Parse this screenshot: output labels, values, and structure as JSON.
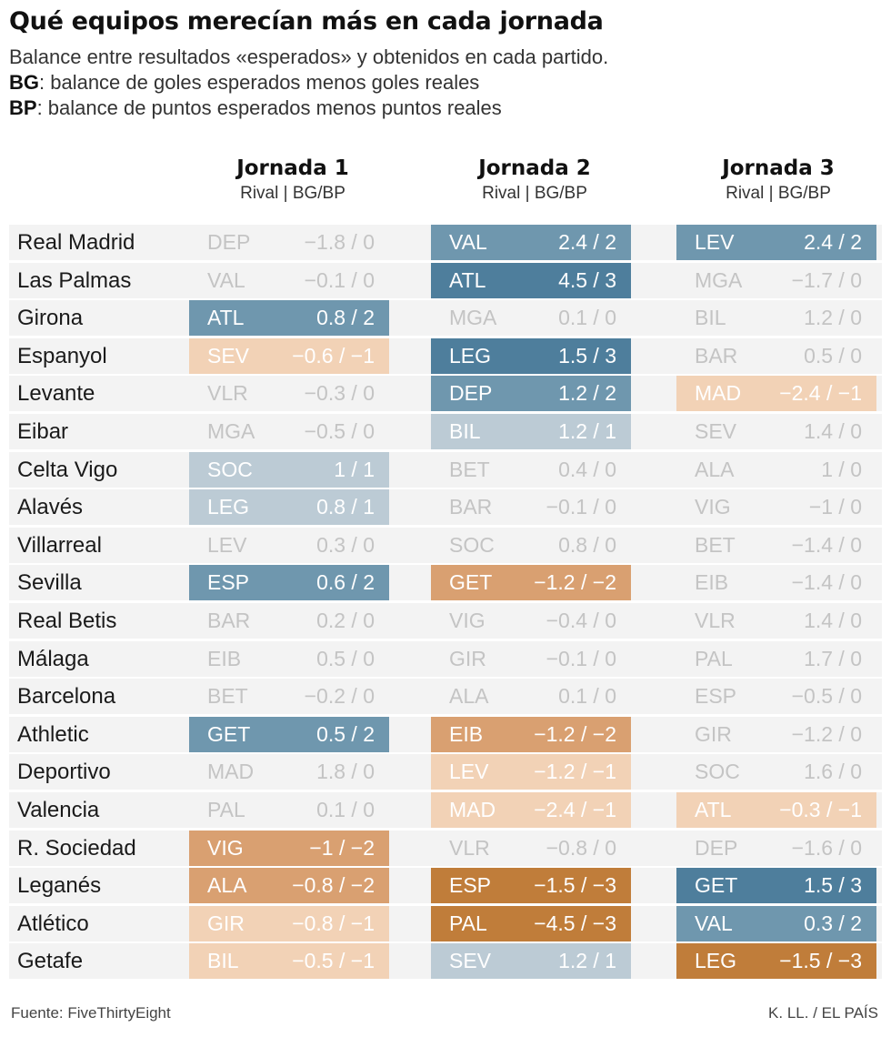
{
  "title": "Qué equipos merecían más en cada jornada",
  "subtitle": "Balance entre resultados «esperados» y obtenidos en cada partido.",
  "legend": {
    "bg_key": "BG",
    "bg_text": ": balance de goles esperados menos goles reales",
    "bp_key": "BP",
    "bp_text": ": balance de puntos esperados menos puntos reales"
  },
  "columns": [
    {
      "title": "Jornada 1",
      "subtitle": "Rival | BG/BP"
    },
    {
      "title": "Jornada 2",
      "subtitle": "Rival | BG/BP"
    },
    {
      "title": "Jornada 3",
      "subtitle": "Rival | BG/BP"
    }
  ],
  "footer": {
    "source": "Fuente: FiveThirtyEight",
    "credit": "K. LL. / EL PAÍS"
  },
  "colors": {
    "neutral": "#f3f3f3",
    "neutral_text": "#c4c4c4",
    "pos1": "#bccbd5",
    "pos2": "#6f97ae",
    "pos3": "#4e7e9c",
    "neg1": "#f2d2b6",
    "neg2": "#d9a071",
    "neg3": "#c07d3a"
  },
  "chart_data": {
    "type": "table",
    "rows": [
      {
        "team": "Real Madrid",
        "cells": [
          {
            "rival": "DEP",
            "bg": -1.8,
            "bp": 0,
            "label": "−1.8 / 0"
          },
          {
            "rival": "VAL",
            "bg": 2.4,
            "bp": 2,
            "label": "2.4 / 2"
          },
          {
            "rival": "LEV",
            "bg": 2.4,
            "bp": 2,
            "label": "2.4 / 2"
          }
        ]
      },
      {
        "team": "Las Palmas",
        "cells": [
          {
            "rival": "VAL",
            "bg": -0.1,
            "bp": 0,
            "label": "−0.1 / 0"
          },
          {
            "rival": "ATL",
            "bg": 4.5,
            "bp": 3,
            "label": "4.5 / 3"
          },
          {
            "rival": "MGA",
            "bg": -1.7,
            "bp": 0,
            "label": "−1.7 / 0"
          }
        ]
      },
      {
        "team": "Girona",
        "cells": [
          {
            "rival": "ATL",
            "bg": 0.8,
            "bp": 2,
            "label": "0.8 / 2"
          },
          {
            "rival": "MGA",
            "bg": 0.1,
            "bp": 0,
            "label": "0.1 / 0"
          },
          {
            "rival": "BIL",
            "bg": 1.2,
            "bp": 0,
            "label": "1.2 / 0"
          }
        ]
      },
      {
        "team": "Espanyol",
        "cells": [
          {
            "rival": "SEV",
            "bg": -0.6,
            "bp": -1,
            "label": "−0.6 / −1"
          },
          {
            "rival": "LEG",
            "bg": 1.5,
            "bp": 3,
            "label": "1.5 / 3"
          },
          {
            "rival": "BAR",
            "bg": 0.5,
            "bp": 0,
            "label": "0.5 / 0"
          }
        ]
      },
      {
        "team": "Levante",
        "cells": [
          {
            "rival": "VLR",
            "bg": -0.3,
            "bp": 0,
            "label": "−0.3 / 0"
          },
          {
            "rival": "DEP",
            "bg": 1.2,
            "bp": 2,
            "label": "1.2 / 2"
          },
          {
            "rival": "MAD",
            "bg": -2.4,
            "bp": -1,
            "label": "−2.4 / −1"
          }
        ]
      },
      {
        "team": "Eibar",
        "cells": [
          {
            "rival": "MGA",
            "bg": -0.5,
            "bp": 0,
            "label": "−0.5 / 0"
          },
          {
            "rival": "BIL",
            "bg": 1.2,
            "bp": 1,
            "label": "1.2 / 1"
          },
          {
            "rival": "SEV",
            "bg": 1.4,
            "bp": 0,
            "label": "1.4 / 0"
          }
        ]
      },
      {
        "team": "Celta Vigo",
        "cells": [
          {
            "rival": "SOC",
            "bg": 1,
            "bp": 1,
            "label": "1 / 1"
          },
          {
            "rival": "BET",
            "bg": 0.4,
            "bp": 0,
            "label": "0.4 / 0"
          },
          {
            "rival": "ALA",
            "bg": 1,
            "bp": 0,
            "label": "1 / 0"
          }
        ]
      },
      {
        "team": "Alavés",
        "cells": [
          {
            "rival": "LEG",
            "bg": 0.8,
            "bp": 1,
            "label": "0.8 / 1"
          },
          {
            "rival": "BAR",
            "bg": -0.1,
            "bp": 0,
            "label": "−0.1 / 0"
          },
          {
            "rival": "VIG",
            "bg": -1,
            "bp": 0,
            "label": "−1 / 0"
          }
        ]
      },
      {
        "team": "Villarreal",
        "cells": [
          {
            "rival": "LEV",
            "bg": 0.3,
            "bp": 0,
            "label": "0.3 / 0"
          },
          {
            "rival": "SOC",
            "bg": 0.8,
            "bp": 0,
            "label": "0.8 / 0"
          },
          {
            "rival": "BET",
            "bg": -1.4,
            "bp": 0,
            "label": "−1.4 / 0"
          }
        ]
      },
      {
        "team": "Sevilla",
        "cells": [
          {
            "rival": "ESP",
            "bg": 0.6,
            "bp": 2,
            "label": "0.6 / 2"
          },
          {
            "rival": "GET",
            "bg": -1.2,
            "bp": -2,
            "label": "−1.2 / −2"
          },
          {
            "rival": "EIB",
            "bg": -1.4,
            "bp": 0,
            "label": "−1.4 / 0"
          }
        ]
      },
      {
        "team": "Real Betis",
        "cells": [
          {
            "rival": "BAR",
            "bg": 0.2,
            "bp": 0,
            "label": "0.2 / 0"
          },
          {
            "rival": "VIG",
            "bg": -0.4,
            "bp": 0,
            "label": "−0.4 / 0"
          },
          {
            "rival": "VLR",
            "bg": 1.4,
            "bp": 0,
            "label": "1.4 / 0"
          }
        ]
      },
      {
        "team": "Málaga",
        "cells": [
          {
            "rival": "EIB",
            "bg": 0.5,
            "bp": 0,
            "label": "0.5 / 0"
          },
          {
            "rival": "GIR",
            "bg": -0.1,
            "bp": 0,
            "label": "−0.1 / 0"
          },
          {
            "rival": "PAL",
            "bg": 1.7,
            "bp": 0,
            "label": "1.7 / 0"
          }
        ]
      },
      {
        "team": "Barcelona",
        "cells": [
          {
            "rival": "BET",
            "bg": -0.2,
            "bp": 0,
            "label": "−0.2 / 0"
          },
          {
            "rival": "ALA",
            "bg": 0.1,
            "bp": 0,
            "label": "0.1 / 0"
          },
          {
            "rival": "ESP",
            "bg": -0.5,
            "bp": 0,
            "label": "−0.5 / 0"
          }
        ]
      },
      {
        "team": "Athletic",
        "cells": [
          {
            "rival": "GET",
            "bg": 0.5,
            "bp": 2,
            "label": "0.5 / 2"
          },
          {
            "rival": "EIB",
            "bg": -1.2,
            "bp": -2,
            "label": "−1.2 / −2"
          },
          {
            "rival": "GIR",
            "bg": -1.2,
            "bp": 0,
            "label": "−1.2 / 0"
          }
        ]
      },
      {
        "team": "Deportivo",
        "cells": [
          {
            "rival": "MAD",
            "bg": 1.8,
            "bp": 0,
            "label": "1.8 / 0"
          },
          {
            "rival": "LEV",
            "bg": -1.2,
            "bp": -1,
            "label": "−1.2 / −1"
          },
          {
            "rival": "SOC",
            "bg": 1.6,
            "bp": 0,
            "label": "1.6 / 0"
          }
        ]
      },
      {
        "team": "Valencia",
        "cells": [
          {
            "rival": "PAL",
            "bg": 0.1,
            "bp": 0,
            "label": "0.1 / 0"
          },
          {
            "rival": "MAD",
            "bg": -2.4,
            "bp": -1,
            "label": "−2.4 / −1"
          },
          {
            "rival": "ATL",
            "bg": -0.3,
            "bp": -1,
            "label": "−0.3 / −1"
          }
        ]
      },
      {
        "team": "R. Sociedad",
        "cells": [
          {
            "rival": "VIG",
            "bg": -1,
            "bp": -2,
            "label": "−1 / −2"
          },
          {
            "rival": "VLR",
            "bg": -0.8,
            "bp": 0,
            "label": "−0.8 / 0"
          },
          {
            "rival": "DEP",
            "bg": -1.6,
            "bp": 0,
            "label": "−1.6 / 0"
          }
        ]
      },
      {
        "team": "Leganés",
        "cells": [
          {
            "rival": "ALA",
            "bg": -0.8,
            "bp": -2,
            "label": "−0.8 / −2"
          },
          {
            "rival": "ESP",
            "bg": -1.5,
            "bp": -3,
            "label": "−1.5 / −3"
          },
          {
            "rival": "GET",
            "bg": 1.5,
            "bp": 3,
            "label": "1.5 / 3"
          }
        ]
      },
      {
        "team": "Atlético",
        "cells": [
          {
            "rival": "GIR",
            "bg": -0.8,
            "bp": -1,
            "label": "−0.8 / −1"
          },
          {
            "rival": "PAL",
            "bg": -4.5,
            "bp": -3,
            "label": "−4.5 / −3"
          },
          {
            "rival": "VAL",
            "bg": 0.3,
            "bp": 2,
            "label": "0.3 / 2"
          }
        ]
      },
      {
        "team": "Getafe",
        "cells": [
          {
            "rival": "BIL",
            "bg": -0.5,
            "bp": -1,
            "label": "−0.5 / −1"
          },
          {
            "rival": "SEV",
            "bg": 1.2,
            "bp": 1,
            "label": "1.2 / 1"
          },
          {
            "rival": "LEG",
            "bg": -1.5,
            "bp": -3,
            "label": "−1.5 / −3"
          }
        ]
      }
    ]
  }
}
